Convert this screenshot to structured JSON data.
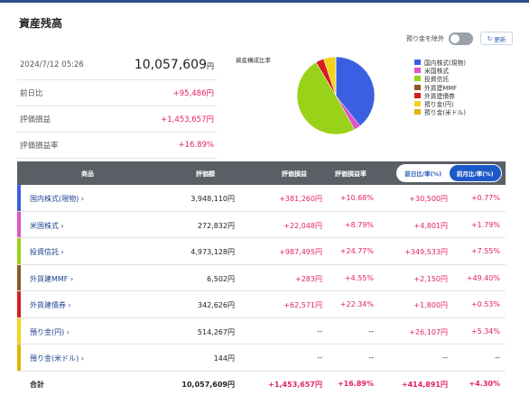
{
  "page": {
    "title": "資産残高"
  },
  "summary": {
    "date": "2024/7/12 05:26",
    "total_value": "10,057,609",
    "yen": "円",
    "rows": [
      {
        "label": "前日比",
        "value": "+95,486円"
      },
      {
        "label": "評価損益",
        "value": "+1,453,657円"
      },
      {
        "label": "評価損益率",
        "value": "+16.89%"
      }
    ]
  },
  "controls": {
    "exclude_deposit_label": "預り金を除外",
    "refresh_label": "更新"
  },
  "chart_data": {
    "type": "pie",
    "title": "資産構成比率",
    "categories": [
      "国内株式(現物)",
      "米国株式",
      "投資信託",
      "外貨建MMF",
      "外貨建債券",
      "預り金(円)",
      "預り金(米ドル)"
    ],
    "values": [
      3948110,
      272832,
      4973128,
      6502,
      342626,
      514267,
      144
    ],
    "colors": [
      "#3b5fe0",
      "#e052c8",
      "#9ad21a",
      "#8a5a2b",
      "#d41f1f",
      "#f2d31b",
      "#e0b500"
    ]
  },
  "table": {
    "headers": [
      "商品",
      "評価額",
      "評価損益",
      "評価損益率"
    ],
    "tabs": [
      "前日比/率(%)",
      "前月比/率(%)"
    ],
    "rows": [
      {
        "name": "国内株式(現物) ›",
        "value": "3,948,110円",
        "pl": "+381,260円",
        "pl_rate": "+10.68%",
        "chg": "+30,500円",
        "chg_rate": "+0.77%",
        "color": "#3b5fe0"
      },
      {
        "name": "米国株式 ›",
        "value": "272,832円",
        "pl": "+22,048円",
        "pl_rate": "+8.79%",
        "chg": "+4,801円",
        "chg_rate": "+1.79%",
        "color": "#e052c8"
      },
      {
        "name": "投資信託 ›",
        "value": "4,973,128円",
        "pl": "+987,495円",
        "pl_rate": "+24.77%",
        "chg": "+349,533円",
        "chg_rate": "+7.55%",
        "color": "#9ad21a"
      },
      {
        "name": "外貨建MMF ›",
        "value": "6,502円",
        "pl": "+283円",
        "pl_rate": "+4.55%",
        "chg": "+2,150円",
        "chg_rate": "+49.40%",
        "color": "#8a5a2b"
      },
      {
        "name": "外貨建債券 ›",
        "value": "342,626円",
        "pl": "+62,571円",
        "pl_rate": "+22.34%",
        "chg": "+1,800円",
        "chg_rate": "+0.53%",
        "color": "#d41f1f"
      },
      {
        "name": "預り金(円) ›",
        "value": "514,267円",
        "pl": "--",
        "pl_rate": "--",
        "chg": "+26,107円",
        "chg_rate": "+5.34%",
        "color": "#f2d31b"
      },
      {
        "name": "預り金(米ドル) ›",
        "value": "144円",
        "pl": "--",
        "pl_rate": "--",
        "chg": "--",
        "chg_rate": "--",
        "color": "#e0b500"
      }
    ],
    "total": {
      "label": "合計",
      "value": "10,057,609円",
      "pl": "+1,453,657円",
      "pl_rate": "+16.89%",
      "chg": "+414,891円",
      "chg_rate": "+4.30%"
    }
  }
}
